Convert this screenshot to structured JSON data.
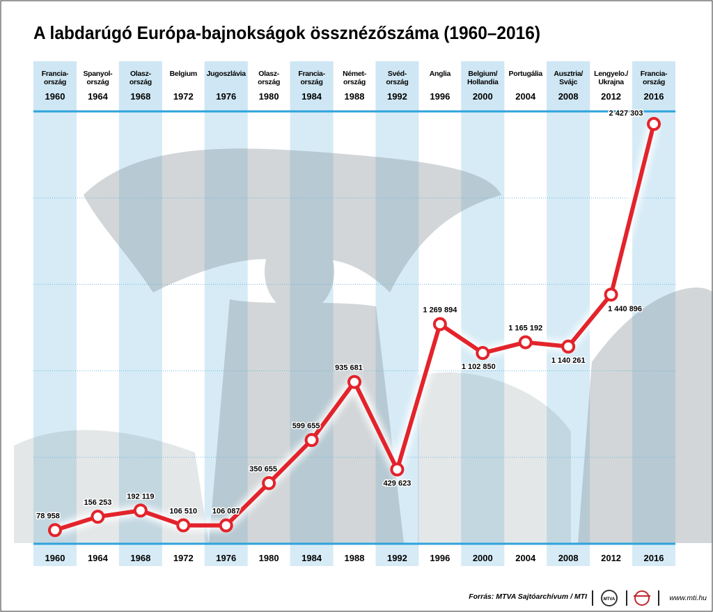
{
  "chart_data": {
    "type": "line",
    "title": "A labdarúgó Európa-bajnokságok össznézőszáma (1960–2016)",
    "categories": [
      "1960",
      "1964",
      "1968",
      "1972",
      "1976",
      "1980",
      "1984",
      "1988",
      "1992",
      "1996",
      "2000",
      "2004",
      "2008",
      "2012",
      "2016"
    ],
    "hosts": [
      "Francia-\nország",
      "Spanyol-\nország",
      "Olasz-\nország",
      "Belgium",
      "Jugoszlávia",
      "Olasz-\nország",
      "Francia-\nország",
      "Német-\nország",
      "Svéd-\nország",
      "Anglia",
      "Belgium/\nHollandia",
      "Portugália",
      "Ausztria/\nSvájc",
      "Lengyelo./\nUkrajna",
      "Francia-\nország"
    ],
    "series": [
      {
        "color": "#e3232b",
        "values": [
          78958,
          156253,
          192119,
          106510,
          106087,
          350655,
          599655,
          935681,
          429623,
          1269894,
          1102850,
          1165192,
          1140261,
          1440896,
          2427303
        ],
        "value_labels": [
          "78 958",
          "156 253",
          "192 119",
          "106 510",
          "106 087",
          "350 655",
          "599 655",
          "935 681",
          "429 623",
          "1 269 894",
          "1 102 850",
          "1 165 192",
          "1 140 261",
          "1 440 896",
          "2 427 303"
        ]
      }
    ],
    "ylim": [
      0,
      2500000
    ],
    "yticks": [
      0,
      500000,
      1000000,
      1500000,
      2000000,
      2500000
    ],
    "grid": true,
    "source": "Forrás: MTVA Sajtóarchívum / MTI",
    "logo": "MTVA",
    "website": "www.mti.hu"
  }
}
